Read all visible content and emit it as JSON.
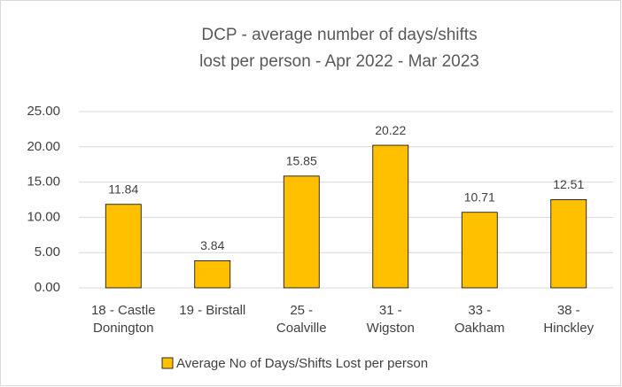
{
  "chart_data": {
    "type": "bar",
    "title": [
      "DCP - average number of days/shifts",
      "lost per person - Apr 2022 - Mar 2023"
    ],
    "categories": [
      "18 - Castle Donington",
      "19 - Birstall",
      "25 - Coalville",
      "31 - Wigston",
      "33 - Oakham",
      "38 - Hinckley"
    ],
    "series": [
      {
        "name": "Average No of Days/Shifts Lost per person",
        "color": "#FFC000",
        "values": [
          11.84,
          3.84,
          15.85,
          20.22,
          10.71,
          12.51
        ]
      }
    ],
    "ylim": [
      0,
      25
    ],
    "yticks": [
      {
        "value": 0,
        "label": "0.00"
      },
      {
        "value": 5,
        "label": "5.00"
      },
      {
        "value": 10,
        "label": "10.00"
      },
      {
        "value": 15,
        "label": "15.00"
      },
      {
        "value": 20,
        "label": "20.00"
      },
      {
        "value": 25,
        "label": "25.00"
      }
    ],
    "grid": true,
    "legend": "bottom"
  }
}
